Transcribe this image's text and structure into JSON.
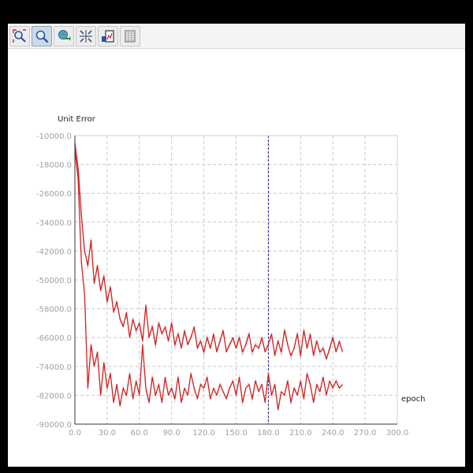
{
  "toolbar": {
    "tools": [
      {
        "icon": "zoom-fit-icon",
        "active": false
      },
      {
        "icon": "zoom-icon",
        "active": true
      },
      {
        "icon": "pan-icon",
        "active": false
      },
      {
        "icon": "crosshair-icon",
        "active": false
      },
      {
        "icon": "export-icon",
        "active": false
      },
      {
        "icon": "table-icon",
        "active": false
      }
    ]
  },
  "chart_data": {
    "type": "line",
    "ylabel": "Unit Error",
    "xlabel": "epoch",
    "xlim": [
      0,
      300
    ],
    "ylim": [
      -90000,
      -10000
    ],
    "xticks": [
      "0.0",
      "30.0",
      "60.0",
      "90.0",
      "120.0",
      "150.0",
      "180.0",
      "210.0",
      "240.0",
      "270.0",
      "300.0"
    ],
    "yticks": [
      "-10000.0",
      "-18000.0",
      "-26000.0",
      "-34000.0",
      "-42000.0",
      "-50000.0",
      "-58000.0",
      "-66000.0",
      "-74000.0",
      "-82000.0",
      "-90000.0"
    ],
    "grid": true,
    "marker_x": 180,
    "colors": {
      "series": "#d62020",
      "ghost": "#b8b8b8",
      "marker": "#1a1aa8",
      "grid": "#c8c8c8",
      "axis_text": "#a0a0a0"
    },
    "series": [
      {
        "x": [
          0,
          3,
          6,
          9,
          12,
          15,
          18,
          21,
          24,
          27,
          30,
          33,
          36,
          39,
          42,
          45,
          48,
          51,
          54,
          57,
          60,
          63,
          66,
          69,
          72,
          75,
          78,
          81,
          84,
          87,
          90,
          93,
          96,
          99,
          102,
          105,
          108,
          111,
          114,
          117,
          120,
          123,
          126,
          129,
          132,
          135,
          138,
          141,
          144,
          147,
          150,
          153,
          156,
          159,
          162,
          165,
          168,
          171,
          174,
          177,
          180,
          183,
          186,
          189,
          192,
          195,
          198,
          201,
          204,
          207,
          210,
          213,
          216,
          219,
          222,
          225,
          228,
          231,
          234,
          237,
          240,
          243,
          246,
          249
        ],
        "values": [
          -12000,
          -19000,
          -32000,
          -42000,
          -46000,
          -39000,
          -51000,
          -46000,
          -53000,
          -49000,
          -56000,
          -52000,
          -59000,
          -56000,
          -61000,
          -63000,
          -59000,
          -66000,
          -61000,
          -64000,
          -62000,
          -67000,
          -57000,
          -66000,
          -63000,
          -68000,
          -62000,
          -65000,
          -63000,
          -67000,
          -62000,
          -68000,
          -65000,
          -69000,
          -64000,
          -68000,
          -66000,
          -63000,
          -69000,
          -67000,
          -70000,
          -66000,
          -69000,
          -65000,
          -70000,
          -67000,
          -64000,
          -70000,
          -68000,
          -66000,
          -69000,
          -66000,
          -70000,
          -68000,
          -65000,
          -70000,
          -68000,
          -69000,
          -66000,
          -70000,
          -68000,
          -65000,
          -71000,
          -67000,
          -70000,
          -64000,
          -68000,
          -71000,
          -69000,
          -65000,
          -71000,
          -64000,
          -69000,
          -65000,
          -71000,
          -67000,
          -70000,
          -69000,
          -72000,
          -69000,
          -66000,
          -70000,
          -67000,
          -70000
        ]
      },
      {
        "x": [
          0,
          3,
          6,
          9,
          12,
          15,
          18,
          21,
          24,
          27,
          30,
          33,
          36,
          39,
          42,
          45,
          48,
          51,
          54,
          57,
          60,
          63,
          66,
          69,
          72,
          75,
          78,
          81,
          84,
          87,
          90,
          93,
          96,
          99,
          102,
          105,
          108,
          111,
          114,
          117,
          120,
          123,
          126,
          129,
          132,
          135,
          138,
          141,
          144,
          147,
          150,
          153,
          156,
          159,
          162,
          165,
          168,
          171,
          174,
          177,
          180,
          183,
          186,
          189,
          192,
          195,
          198,
          201,
          204,
          207,
          210,
          213,
          216,
          219,
          222,
          225,
          228,
          231,
          234,
          237,
          240,
          243,
          246,
          249
        ],
        "values": [
          -14000,
          -22000,
          -45000,
          -54000,
          -80000,
          -68000,
          -74000,
          -70000,
          -82000,
          -73000,
          -80000,
          -76000,
          -84000,
          -79000,
          -85000,
          -80000,
          -82000,
          -76000,
          -83000,
          -78000,
          -82000,
          -68000,
          -80000,
          -84000,
          -77000,
          -82000,
          -79000,
          -84000,
          -77000,
          -82000,
          -80000,
          -83000,
          -77000,
          -84000,
          -80000,
          -82000,
          -76000,
          -80000,
          -83000,
          -79000,
          -80000,
          -77000,
          -83000,
          -80000,
          -82000,
          -79000,
          -81000,
          -83000,
          -80000,
          -78000,
          -82000,
          -77000,
          -84000,
          -80000,
          -79000,
          -83000,
          -78000,
          -81000,
          -79000,
          -84000,
          -76000,
          -82000,
          -79000,
          -86000,
          -81000,
          -82000,
          -78000,
          -84000,
          -80000,
          -82000,
          -78000,
          -83000,
          -76000,
          -79000,
          -84000,
          -79000,
          -81000,
          -77000,
          -82000,
          -78000,
          -80000,
          -78000,
          -80000,
          -79000
        ]
      }
    ]
  }
}
